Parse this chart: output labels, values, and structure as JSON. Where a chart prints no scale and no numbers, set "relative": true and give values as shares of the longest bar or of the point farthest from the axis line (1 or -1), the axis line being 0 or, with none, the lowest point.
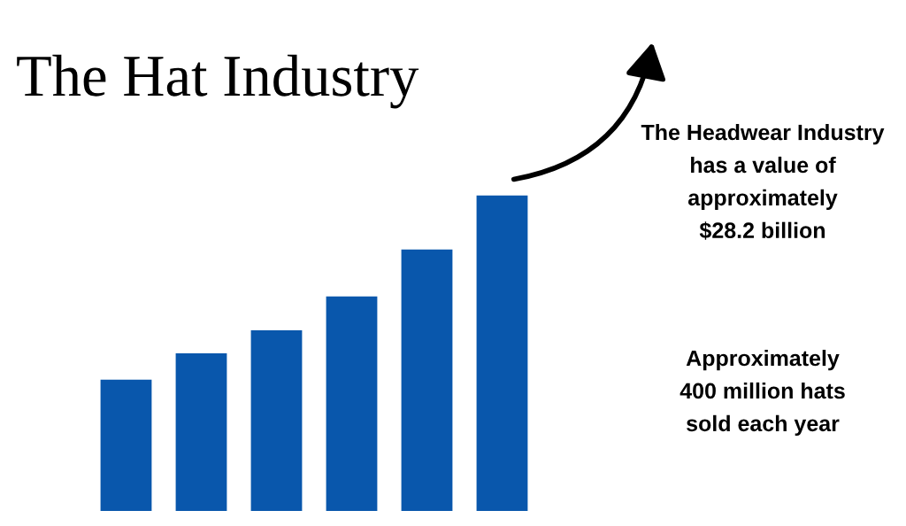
{
  "chart_data": {
    "type": "bar",
    "title": "The Hat Industry",
    "relative": true,
    "categories": [
      null,
      null,
      null,
      null,
      null,
      null
    ],
    "values": [
      0.416,
      0.5,
      0.573,
      0.68,
      0.829,
      1.0
    ],
    "color": "#0957ac",
    "grid": false,
    "legend": false,
    "annotations": [
      "The Headwear Industry\nhas a value of\napproximately\n$28.2 billion",
      "Approximately\n400 million hats\nsold each year"
    ]
  }
}
